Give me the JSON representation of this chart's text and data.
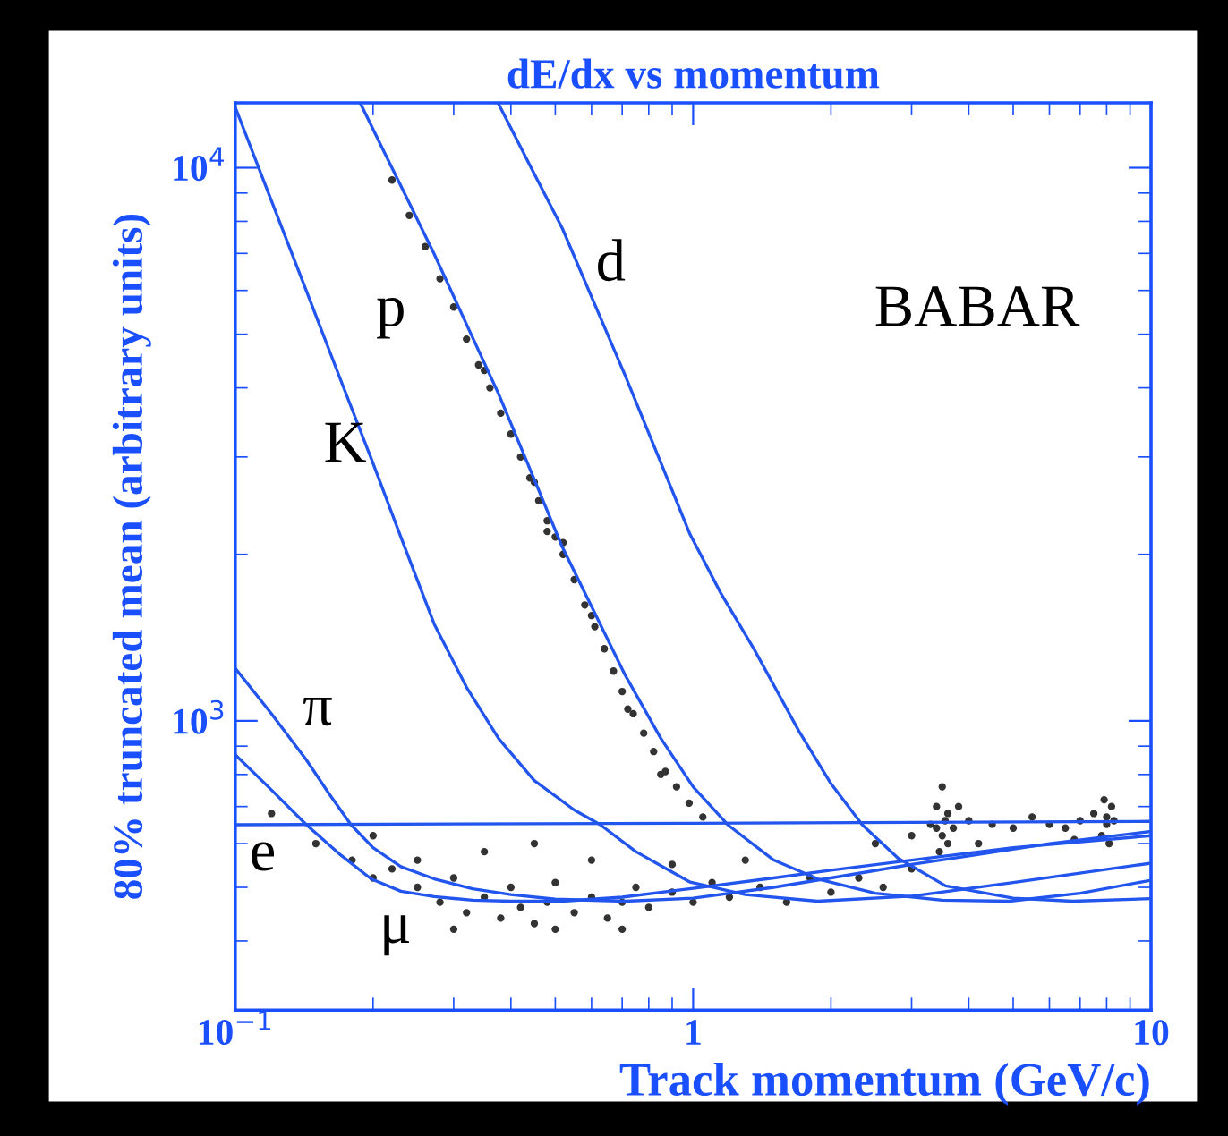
{
  "chart_data": {
    "type": "line",
    "title": "dE/dx vs momentum",
    "xlabel": "Track momentum (GeV/c)",
    "ylabel": "80% truncated mean (arbitrary units)",
    "log": "xy",
    "grid": false,
    "xlim": [
      0.1,
      10
    ],
    "ylim": [
      300,
      13100
    ],
    "xticks": [
      {
        "value": 0.1,
        "label": "10$^{−1}$"
      },
      1,
      10
    ],
    "yticks": [
      {
        "value": 1000,
        "label": "10$^{3}$"
      },
      {
        "value": 10000,
        "label": "10$^{4}$"
      }
    ],
    "series": [
      {
        "color": "#2255ee",
        "x": [
          0.1,
          1,
          10
        ],
        "values": [
          649,
          653,
          658
        ]
      },
      {
        "color": "#2255ee",
        "x": [
          0.1,
          0.12,
          0.143,
          0.17,
          0.198,
          0.23,
          0.272,
          0.33,
          0.4,
          0.518,
          0.7,
          1,
          1.5,
          2,
          3,
          5,
          10
        ],
        "values": [
          869,
          750,
          649,
          572,
          518,
          492,
          481,
          474,
          472,
          472,
          480,
          498,
          520,
          537,
          560,
          590,
          620
        ]
      },
      {
        "color": "#2255ee",
        "x": [
          0.1,
          0.12,
          0.143,
          0.16,
          0.179,
          0.2,
          0.23,
          0.272,
          0.33,
          0.4,
          0.5,
          0.71,
          1,
          1.5,
          2,
          3,
          4,
          6,
          10
        ],
        "values": [
          1245,
          1030,
          850,
          740,
          649,
          590,
          545,
          518,
          497,
          485,
          476,
          472,
          478,
          500,
          520,
          550,
          570,
          600,
          631
        ]
      },
      {
        "color": "#2255ee",
        "x": [
          0.1,
          0.12,
          0.143,
          0.17,
          0.198,
          0.23,
          0.272,
          0.32,
          0.376,
          0.45,
          0.55,
          0.627,
          0.75,
          0.985,
          1.3,
          1.87,
          3,
          5,
          10
        ],
        "values": [
          12870,
          8710,
          5990,
          4130,
          2985,
          2150,
          1496,
          1150,
          929,
          780,
          690,
          649,
          580,
          511,
          485,
          472,
          482,
          510,
          553
        ]
      },
      {
        "color": "#2255ee",
        "x": [
          0.188,
          0.21,
          0.24,
          0.272,
          0.32,
          0.376,
          0.44,
          0.518,
          0.6,
          0.71,
          0.85,
          1.0,
          1.19,
          1.5,
          1.87,
          2.5,
          3.5,
          4.9,
          7,
          10
        ],
        "values": [
          13040,
          10800,
          8630,
          6980,
          5210,
          3900,
          2855,
          2062,
          1610,
          1211,
          930,
          760,
          649,
          560,
          518,
          488,
          474,
          472,
          488,
          515
        ]
      },
      {
        "color": "#2255ee",
        "x": [
          0.376,
          0.44,
          0.518,
          0.6,
          0.71,
          0.85,
          0.985,
          1.15,
          1.36,
          1.7,
          2.0,
          2.34,
          2.8,
          3.56,
          5,
          6.75,
          10
        ],
        "values": [
          13040,
          10100,
          7770,
          5840,
          4218,
          2930,
          2172,
          1700,
          1346,
          960,
          770,
          649,
          565,
          503,
          478,
          472,
          477
        ]
      },
      {
        "type": "scatter",
        "color": "#333333",
        "x": [
          0.22,
          0.24,
          0.26,
          0.28,
          0.3,
          0.32,
          0.34,
          0.36,
          0.38,
          0.4,
          0.42,
          0.44,
          0.46,
          0.48,
          0.5,
          0.52,
          0.55,
          0.58,
          0.61,
          0.64,
          0.67,
          0.7,
          0.74,
          0.78,
          0.82,
          0.87,
          0.92,
          0.98,
          1.05,
          0.35,
          0.45,
          0.6,
          0.52,
          0.48,
          0.72,
          0.85,
          0.15,
          0.18,
          0.2,
          0.22,
          0.25,
          0.28,
          0.3,
          0.32,
          0.35,
          0.38,
          0.4,
          0.42,
          0.45,
          0.48,
          0.5,
          0.55,
          0.6,
          0.65,
          0.7,
          0.75,
          0.8,
          0.9,
          1.0,
          1.1,
          1.2,
          1.4,
          1.6,
          1.8,
          2.0,
          2.3,
          2.6,
          3.0,
          0.3,
          0.5,
          0.7,
          0.25,
          0.35,
          0.6,
          0.9,
          1.3,
          0.45,
          0.2,
          0.12,
          3.3,
          3.4,
          3.5,
          3.6,
          3.7,
          3.5,
          3.45,
          3.6,
          3.8,
          3.4,
          3.55,
          4.0,
          4.5,
          5.0,
          5.5,
          6.0,
          6.5,
          7.0,
          7.5,
          8.0,
          8.2,
          7.8,
          8.1,
          8.3,
          7.9,
          8.0,
          3.0,
          2.5,
          4.2,
          6.8
        ],
        "values": [
          9500,
          8200,
          7200,
          6300,
          5600,
          4900,
          4400,
          4000,
          3600,
          3300,
          3000,
          2750,
          2500,
          2300,
          2150,
          2000,
          1800,
          1620,
          1480,
          1350,
          1230,
          1130,
          1030,
          950,
          880,
          810,
          760,
          710,
          670,
          4300,
          2700,
          1550,
          2100,
          2200,
          1050,
          800,
          600,
          560,
          520,
          540,
          500,
          470,
          520,
          450,
          480,
          440,
          500,
          460,
          430,
          470,
          510,
          450,
          480,
          440,
          470,
          500,
          460,
          490,
          470,
          510,
          480,
          500,
          470,
          520,
          490,
          520,
          500,
          540,
          420,
          420,
          420,
          560,
          580,
          560,
          550,
          560,
          600,
          620,
          680,
          650,
          700,
          620,
          680,
          640,
          760,
          580,
          600,
          700,
          640,
          660,
          660,
          650,
          640,
          670,
          650,
          640,
          660,
          680,
          650,
          700,
          620,
          600,
          660,
          720,
          670,
          620,
          600,
          600,
          610
        ]
      }
    ],
    "annotations": [
      "e",
      "μ",
      "π",
      "K",
      "p",
      "d",
      "BABAR"
    ]
  }
}
